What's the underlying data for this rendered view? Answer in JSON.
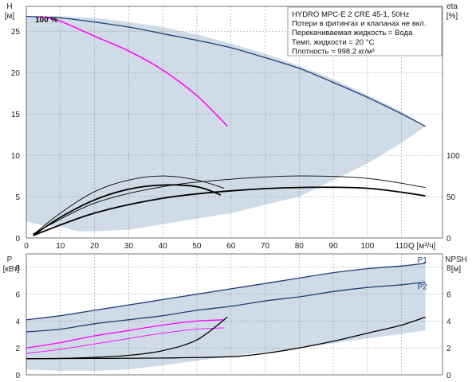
{
  "chart_data": [
    {
      "id": "top",
      "type": "line",
      "xlabel": "Q [м³/ч]",
      "xlim": [
        0,
        122
      ],
      "x_ticks": [
        0,
        10,
        20,
        30,
        40,
        50,
        60,
        70,
        80,
        90,
        100,
        110
      ],
      "ylabel_left": "H",
      "ylabel_left_unit": "[м]",
      "ylim_left": [
        0,
        28
      ],
      "y_ticks_left": [
        0,
        5,
        10,
        15,
        20,
        25
      ],
      "ylabel_right": "eta",
      "ylabel_right_unit": "[%]",
      "ylim_right": [
        0,
        280
      ],
      "y_ticks_right": [
        0,
        50,
        100
      ],
      "grid": true,
      "info_box": [
        "HYDRO MPC-E 2 CRE 45-1, 50Hz",
        "Потери в фитингах и клапанах не вкл.",
        "Перекачиваемая жидкость = Вода",
        "Темп. жидкости = 20 °C",
        "Плотность = 998.2 кг/м³"
      ],
      "annotations": [
        "100 %"
      ],
      "colors": {
        "envelope": "#cfdbe6",
        "qh_max": "#1f3f78",
        "qh_single": "#ff00ff",
        "eta": "#000000"
      },
      "envelope": [
        [
          0,
          2
        ],
        [
          5,
          1.5
        ],
        [
          10,
          1.4
        ],
        [
          15,
          0.8
        ],
        [
          20,
          0.8
        ],
        [
          30,
          1
        ],
        [
          60,
          3
        ],
        [
          80,
          5
        ],
        [
          90,
          7
        ],
        [
          100,
          9
        ],
        [
          110,
          11.5
        ],
        [
          117,
          13.5
        ],
        [
          110,
          15.3
        ],
        [
          100,
          17.3
        ],
        [
          90,
          19.2
        ],
        [
          80,
          20.8
        ],
        [
          70,
          22.3
        ],
        [
          60,
          23.5
        ],
        [
          50,
          24.6
        ],
        [
          40,
          25.5
        ],
        [
          30,
          26.1
        ],
        [
          20,
          26.6
        ],
        [
          10,
          26.8
        ],
        [
          0,
          26.8
        ]
      ],
      "qh_max": {
        "x": [
          0,
          10,
          20,
          30,
          40,
          50,
          60,
          70,
          80,
          90,
          100,
          110,
          117
        ],
        "y": [
          26.8,
          26.6,
          26.1,
          25.5,
          24.7,
          23.9,
          23,
          21.8,
          20.5,
          18.8,
          17,
          15,
          13.5
        ]
      },
      "qh_single": {
        "x": [
          4,
          10,
          20,
          30,
          40,
          50,
          59
        ],
        "y": [
          26.8,
          26.2,
          24.4,
          22.6,
          20.3,
          17.2,
          13.5
        ]
      },
      "eta_curves": [
        {
          "x": [
            2,
            10,
            20,
            30,
            40,
            50,
            58
          ],
          "y": [
            4,
            30,
            56,
            70,
            75,
            70,
            60
          ],
          "width": 0.9
        },
        {
          "x": [
            2,
            10,
            20,
            30,
            40,
            50,
            57
          ],
          "y": [
            3,
            25,
            46,
            59,
            64,
            62,
            52
          ],
          "width": 1.8
        },
        {
          "x": [
            2,
            20,
            40,
            60,
            80,
            100,
            117
          ],
          "y": [
            5,
            42,
            62,
            71,
            75,
            72,
            61
          ],
          "width": 0.9
        },
        {
          "x": [
            2,
            20,
            40,
            60,
            80,
            100,
            117
          ],
          "y": [
            3,
            30,
            48,
            57,
            61,
            60,
            51
          ],
          "width": 1.8
        }
      ]
    },
    {
      "id": "bottom",
      "type": "line",
      "xlim": [
        0,
        122
      ],
      "ylabel_left": "P",
      "ylabel_left_unit": "[кВт]",
      "ylim_left": [
        0,
        9
      ],
      "y_ticks_left": [
        0,
        2,
        4,
        6,
        8
      ],
      "ylabel_right": "NPSH",
      "ylabel_right_unit": "[м]",
      "ylim_right": [
        0,
        9
      ],
      "y_ticks_right": [
        0,
        2,
        4,
        6,
        8
      ],
      "grid": true,
      "colors": {
        "envelope": "#cfdbe6",
        "p": "#1f3f78",
        "p_single": "#ff00ff",
        "npsh": "#000000"
      },
      "envelope": [
        [
          0,
          4.1
        ],
        [
          10,
          4.4
        ],
        [
          20,
          4.8
        ],
        [
          30,
          5.2
        ],
        [
          40,
          5.6
        ],
        [
          50,
          6
        ],
        [
          60,
          6.4
        ],
        [
          70,
          6.8
        ],
        [
          80,
          7.2
        ],
        [
          90,
          7.6
        ],
        [
          100,
          7.9
        ],
        [
          110,
          8.1
        ],
        [
          117,
          8.3
        ],
        [
          117,
          3.3
        ],
        [
          100,
          2.7
        ],
        [
          80,
          2.0
        ],
        [
          60,
          1.4
        ],
        [
          40,
          0.7
        ],
        [
          30,
          0.4
        ],
        [
          20,
          0.3
        ],
        [
          10,
          0.3
        ],
        [
          0,
          0.4
        ]
      ],
      "series": [
        {
          "name": "P1",
          "x": [
            0,
            10,
            20,
            30,
            40,
            50,
            60,
            70,
            80,
            90,
            100,
            110,
            117
          ],
          "y": [
            4.1,
            4.4,
            4.8,
            5.2,
            5.6,
            6,
            6.4,
            6.8,
            7.2,
            7.6,
            7.9,
            8.1,
            8.3
          ],
          "color": "#1f3f78"
        },
        {
          "name": "P2",
          "x": [
            0,
            10,
            20,
            30,
            40,
            50,
            60,
            70,
            80,
            90,
            100,
            110,
            117
          ],
          "y": [
            3.2,
            3.4,
            3.8,
            4.1,
            4.4,
            4.8,
            5.1,
            5.5,
            5.8,
            6.2,
            6.5,
            6.7,
            6.9
          ],
          "color": "#1f3f78"
        },
        {
          "x": [
            0,
            10,
            20,
            30,
            40,
            50,
            58
          ],
          "y": [
            2.0,
            2.4,
            2.9,
            3.3,
            3.7,
            4.0,
            4.1
          ],
          "color": "#ff00ff"
        },
        {
          "x": [
            0,
            10,
            20,
            30,
            40,
            50,
            58
          ],
          "y": [
            1.6,
            1.9,
            2.3,
            2.7,
            3.1,
            3.4,
            3.5
          ],
          "color": "#ff00ff",
          "width": 0.9
        },
        {
          "x": [
            0,
            10,
            20,
            30,
            40,
            50,
            59
          ],
          "y": [
            1.2,
            1.22,
            1.3,
            1.45,
            1.8,
            2.6,
            4.3
          ],
          "color": "#000000"
        },
        {
          "x": [
            0,
            20,
            40,
            60,
            70,
            80,
            90,
            100,
            110,
            117
          ],
          "y": [
            1.2,
            1.22,
            1.25,
            1.35,
            1.6,
            2.0,
            2.5,
            3.1,
            3.7,
            4.3
          ],
          "color": "#000000"
        }
      ]
    }
  ]
}
